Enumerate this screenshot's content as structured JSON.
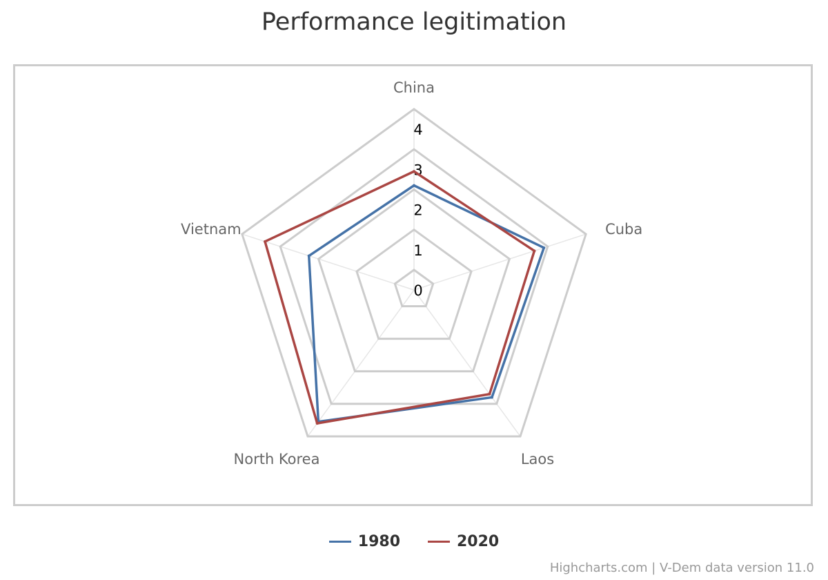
{
  "chart_data": {
    "type": "radar",
    "title": "Performance legitimation",
    "categories": [
      "China",
      "Cuba",
      "Laos",
      "North Korea",
      "Vietnam"
    ],
    "radial_axis": {
      "min": 0,
      "max": 4.5,
      "tick_labels": [
        "0",
        "1",
        "2",
        "3",
        "4"
      ]
    },
    "series": [
      {
        "name": "1980",
        "color": "#4572a7",
        "values": [
          2.6,
          3.4,
          3.3,
          4.05,
          2.75
        ]
      },
      {
        "name": "2020",
        "color": "#aa4643",
        "values": [
          2.95,
          3.15,
          3.2,
          4.1,
          3.9
        ]
      }
    ],
    "legend_position": "bottom-center",
    "credits": "Highcharts.com | V-Dem data version 11.0"
  }
}
